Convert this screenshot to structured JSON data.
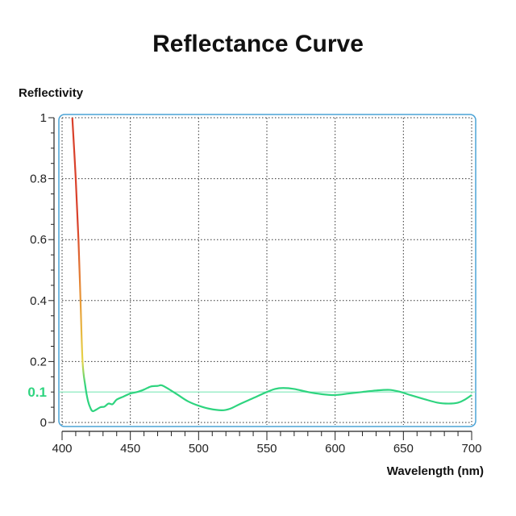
{
  "chart_data": {
    "type": "line",
    "title": "Reflectance Curve",
    "xlabel": "Wavelength (nm)",
    "ylabel": "Reflectivity",
    "xlim": [
      400,
      700
    ],
    "ylim": [
      0,
      1
    ],
    "x_ticks": [
      400,
      450,
      500,
      550,
      600,
      650,
      700
    ],
    "y_ticks": [
      0,
      0.2,
      0.4,
      0.6,
      0.8,
      1
    ],
    "y_tick_labels": [
      "0",
      "0.2",
      "0.4",
      "0.6",
      "0.8",
      "1"
    ],
    "grid": true,
    "reference_line": {
      "y": 0.1,
      "label": "0.1",
      "color": "#7fe8b8",
      "label_color": "#2ed47f"
    },
    "frame_color": "#4aa3d6",
    "gradient_colors": {
      "high": "#d9412b",
      "mid": "#e6d54a",
      "low": "#2ed47f"
    },
    "series": [
      {
        "x": [
          407.5,
          410,
          412,
          413.5,
          415,
          417,
          419,
          421,
          422.5,
          425,
          428,
          431,
          434,
          437,
          440,
          445,
          450,
          455,
          460,
          465,
          470,
          473,
          478,
          485,
          492,
          500,
          508,
          517,
          523,
          530,
          540,
          550,
          556,
          562,
          570,
          580,
          590,
          600,
          610,
          620,
          630,
          640,
          648,
          655,
          665,
          675,
          683,
          690,
          695,
          700
        ],
        "y": [
          1.0,
          0.8,
          0.6,
          0.4,
          0.2,
          0.12,
          0.07,
          0.045,
          0.037,
          0.042,
          0.05,
          0.052,
          0.062,
          0.06,
          0.075,
          0.085,
          0.095,
          0.1,
          0.108,
          0.118,
          0.12,
          0.122,
          0.11,
          0.09,
          0.07,
          0.055,
          0.045,
          0.04,
          0.045,
          0.06,
          0.08,
          0.1,
          0.11,
          0.113,
          0.11,
          0.1,
          0.093,
          0.09,
          0.095,
          0.1,
          0.105,
          0.107,
          0.1,
          0.09,
          0.077,
          0.065,
          0.062,
          0.065,
          0.075,
          0.09
        ]
      }
    ]
  }
}
